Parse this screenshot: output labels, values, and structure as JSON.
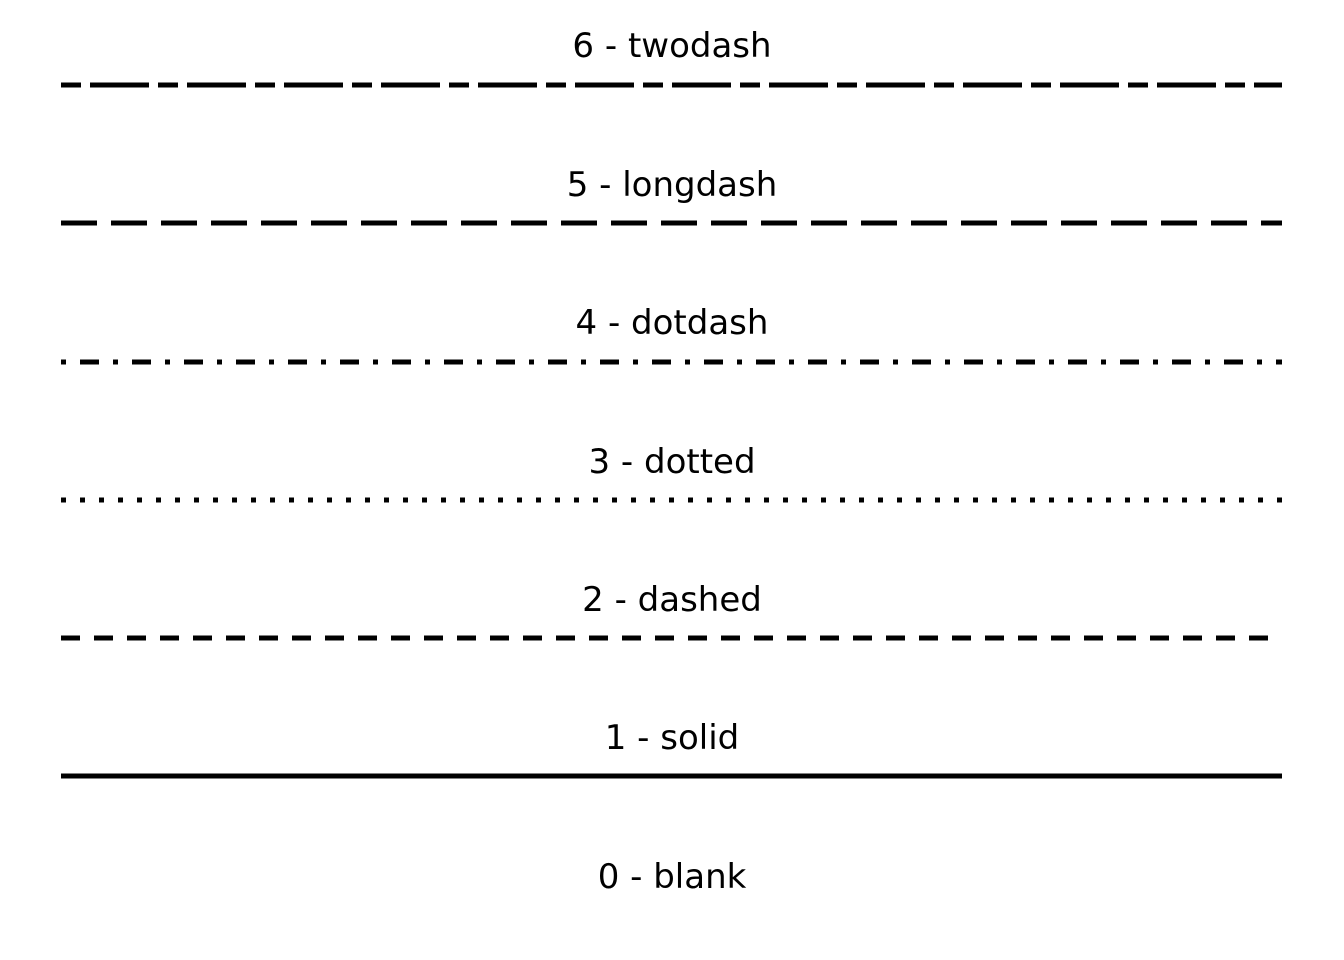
{
  "diagram": {
    "line_color": "#000000",
    "background": "#ffffff",
    "linetypes": [
      {
        "code": "6",
        "name": "twodash",
        "label": "6 - twodash"
      },
      {
        "code": "5",
        "name": "longdash",
        "label": "5 - longdash"
      },
      {
        "code": "4",
        "name": "dotdash",
        "label": "4 - dotdash"
      },
      {
        "code": "3",
        "name": "dotted",
        "label": "3 - dotted"
      },
      {
        "code": "2",
        "name": "dashed",
        "label": "2 - dashed"
      },
      {
        "code": "1",
        "name": "solid",
        "label": "1 - solid"
      },
      {
        "code": "0",
        "name": "blank",
        "label": "0 - blank"
      }
    ]
  }
}
